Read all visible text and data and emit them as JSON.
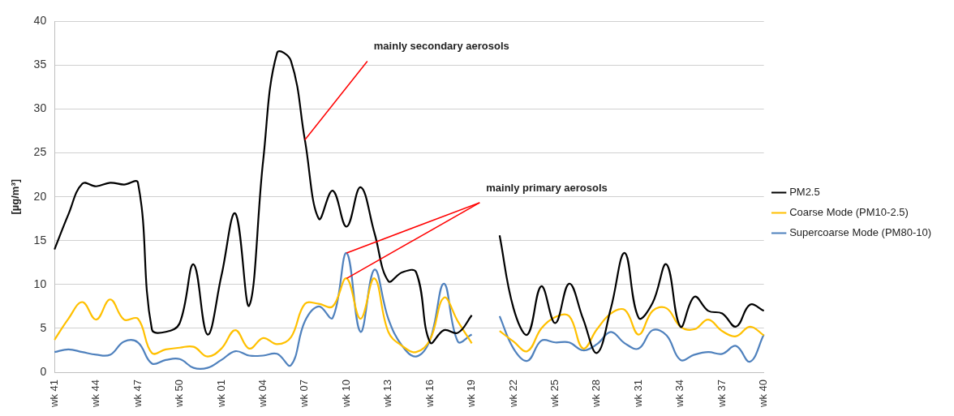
{
  "chart_data": {
    "type": "line",
    "ylabel": "[µg/m³]",
    "categories": [
      "wk 41",
      null,
      null,
      "wk 44",
      null,
      null,
      "wk 47",
      null,
      null,
      "wk 50",
      null,
      null,
      "wk 01",
      null,
      null,
      "wk 04",
      null,
      null,
      "wk 07",
      null,
      null,
      "wk 10",
      null,
      null,
      "wk 13",
      null,
      null,
      "wk 16",
      null,
      null,
      "wk 19",
      null,
      null,
      "wk 22",
      null,
      null,
      "wk 25",
      null,
      null,
      "wk 28",
      null,
      null,
      "wk 31",
      null,
      null,
      "wk 34",
      null,
      null,
      "wk 37",
      null,
      null,
      "wk 40"
    ],
    "series": [
      {
        "name": "PM2.5",
        "color": "#000000",
        "values": [
          14.0,
          18.0,
          21.5,
          21.2,
          21.6,
          21.4,
          21.6,
          4.9,
          4.6,
          5.6,
          12.3,
          4.3,
          11.0,
          18.1,
          7.6,
          24.1,
          36.4,
          35.5,
          26.5,
          17.5,
          20.7,
          16.6,
          21.1,
          15.9,
          10.4,
          11.4,
          11.4,
          3.4,
          4.8,
          4.5,
          6.5,
          null,
          15.6,
          7.3,
          4.3,
          9.8,
          5.6,
          10.1,
          6.1,
          2.2,
          7.3,
          13.6,
          6.2,
          7.9,
          12.3,
          5.2,
          8.6,
          7.0,
          6.7,
          5.2,
          7.7,
          7.0
        ]
      },
      {
        "name": "Coarse Mode (PM10-2.5)",
        "color": "#ffc000",
        "values": [
          3.7,
          6.1,
          8.0,
          6.0,
          8.3,
          6.0,
          6.1,
          2.2,
          2.6,
          2.8,
          2.9,
          1.8,
          2.7,
          4.8,
          2.7,
          3.9,
          3.2,
          4.0,
          7.8,
          7.8,
          7.5,
          10.7,
          6.1,
          10.7,
          4.6,
          3.0,
          2.3,
          3.7,
          8.5,
          5.8,
          3.3,
          null,
          4.7,
          3.5,
          2.4,
          5.0,
          6.3,
          6.4,
          2.7,
          4.9,
          6.7,
          7.1,
          4.3,
          7.0,
          7.3,
          5.2,
          4.9,
          6.0,
          4.7,
          4.1,
          5.2,
          4.2
        ]
      },
      {
        "name": "Supercoarse Mode (PM80-10)",
        "color": "#4f81bd",
        "values": [
          2.3,
          2.6,
          2.3,
          2.0,
          2.0,
          3.5,
          3.4,
          1.0,
          1.4,
          1.5,
          0.5,
          0.5,
          1.4,
          2.4,
          1.9,
          1.9,
          2.1,
          0.8,
          5.8,
          7.5,
          6.2,
          13.6,
          4.6,
          11.7,
          6.1,
          3.0,
          1.8,
          3.7,
          10.1,
          3.5,
          4.3,
          null,
          6.4,
          2.7,
          1.3,
          3.6,
          3.4,
          3.4,
          2.5,
          3.2,
          4.6,
          3.3,
          2.7,
          4.8,
          4.2,
          1.4,
          2.0,
          2.3,
          2.1,
          3.0,
          1.2,
          4.3
        ]
      }
    ],
    "ylim": [
      0,
      40
    ],
    "yticks": [
      0,
      5,
      10,
      15,
      20,
      25,
      30,
      35,
      40
    ],
    "grid": "y",
    "legend": "right",
    "marker": "none",
    "line_style": "solid",
    "annotations": [
      {
        "text": "mainly secondary aerosols",
        "x": "wk 07",
        "y": 26.5
      },
      {
        "text": "mainly primary aerosols",
        "x": "wk 10",
        "y": 13.6
      }
    ]
  }
}
